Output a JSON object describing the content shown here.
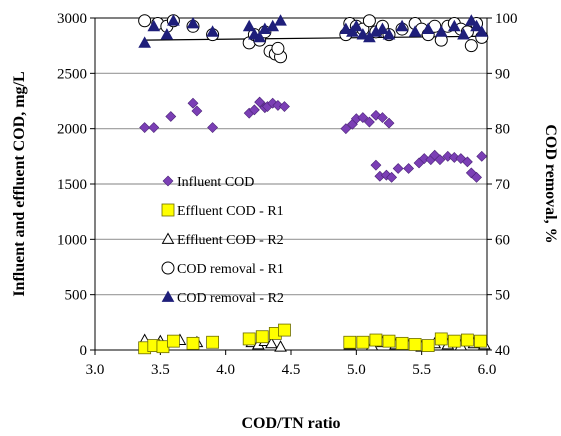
{
  "chart_data": {
    "type": "scatter",
    "xlabel": "COD/TN ratio",
    "ylabel": "Influent and effluent COD, mg/L",
    "y2label": "COD removal, %",
    "xlim": [
      3.0,
      6.0
    ],
    "ylim": [
      0,
      3000
    ],
    "y2lim": [
      40,
      100
    ],
    "xticks": [
      "3.0",
      "3.5",
      "4.0",
      "4.5",
      "5.0",
      "5.5",
      "6.0"
    ],
    "yticks": [
      "0",
      "500",
      "1000",
      "1500",
      "2000",
      "2500",
      "3000"
    ],
    "y2ticks": [
      "40",
      "50",
      "60",
      "70",
      "80",
      "90",
      "100"
    ],
    "grid": "horizontal",
    "legend_position": "center-left",
    "series": [
      {
        "name": "Influent COD",
        "axis": "left",
        "marker": "diamond",
        "color": "#7b3fb5",
        "points": [
          [
            3.38,
            2010
          ],
          [
            3.45,
            2010
          ],
          [
            3.58,
            2110
          ],
          [
            3.75,
            2230
          ],
          [
            3.78,
            2160
          ],
          [
            3.9,
            2010
          ],
          [
            4.18,
            2140
          ],
          [
            4.22,
            2170
          ],
          [
            4.26,
            2240
          ],
          [
            4.3,
            2190
          ],
          [
            4.32,
            2200
          ],
          [
            4.36,
            2230
          ],
          [
            4.4,
            2210
          ],
          [
            4.45,
            2200
          ],
          [
            4.92,
            2000
          ],
          [
            4.97,
            2040
          ],
          [
            5.0,
            2090
          ],
          [
            5.05,
            2100
          ],
          [
            5.1,
            2060
          ],
          [
            5.15,
            2120
          ],
          [
            5.2,
            2100
          ],
          [
            5.25,
            2050
          ],
          [
            5.15,
            1670
          ],
          [
            5.18,
            1570
          ],
          [
            5.23,
            1580
          ],
          [
            5.27,
            1560
          ],
          [
            5.32,
            1640
          ],
          [
            5.4,
            1640
          ],
          [
            5.48,
            1690
          ],
          [
            5.52,
            1730
          ],
          [
            5.57,
            1720
          ],
          [
            5.6,
            1760
          ],
          [
            5.64,
            1720
          ],
          [
            5.7,
            1750
          ],
          [
            5.75,
            1740
          ],
          [
            5.8,
            1730
          ],
          [
            5.85,
            1700
          ],
          [
            5.88,
            1600
          ],
          [
            5.92,
            1560
          ],
          [
            5.96,
            1750
          ]
        ]
      },
      {
        "name": "Effluent COD - R1",
        "axis": "left",
        "marker": "square",
        "color": "#ffff00",
        "points": [
          [
            3.38,
            20
          ],
          [
            3.45,
            40
          ],
          [
            3.52,
            30
          ],
          [
            3.6,
            80
          ],
          [
            3.75,
            60
          ],
          [
            3.9,
            70
          ],
          [
            4.18,
            100
          ],
          [
            4.28,
            120
          ],
          [
            4.38,
            150
          ],
          [
            4.45,
            180
          ],
          [
            4.95,
            70
          ],
          [
            5.05,
            70
          ],
          [
            5.15,
            90
          ],
          [
            5.25,
            80
          ],
          [
            5.35,
            60
          ],
          [
            5.45,
            50
          ],
          [
            5.55,
            40
          ],
          [
            5.65,
            100
          ],
          [
            5.75,
            80
          ],
          [
            5.85,
            90
          ],
          [
            5.95,
            80
          ]
        ]
      },
      {
        "name": "Effluent COD - R2",
        "axis": "left",
        "marker": "triangle-open",
        "color": "#000000",
        "points": [
          [
            3.38,
            90
          ],
          [
            3.5,
            80
          ],
          [
            3.65,
            90
          ],
          [
            3.78,
            70
          ],
          [
            3.9,
            60
          ],
          [
            4.2,
            70
          ],
          [
            4.25,
            50
          ],
          [
            4.3,
            80
          ],
          [
            4.35,
            60
          ],
          [
            4.42,
            30
          ],
          [
            4.95,
            50
          ],
          [
            5.05,
            60
          ],
          [
            5.12,
            40
          ],
          [
            5.2,
            70
          ],
          [
            5.3,
            50
          ],
          [
            5.4,
            40
          ],
          [
            5.5,
            30
          ],
          [
            5.6,
            60
          ],
          [
            5.7,
            50
          ],
          [
            5.8,
            40
          ],
          [
            5.9,
            60
          ],
          [
            5.98,
            50
          ]
        ]
      },
      {
        "name": "COD removal  - R1",
        "axis": "right",
        "marker": "circle-open",
        "color": "#000000",
        "points": [
          [
            3.38,
            99.5
          ],
          [
            3.48,
            99.0
          ],
          [
            3.55,
            98.5
          ],
          [
            3.6,
            99.5
          ],
          [
            3.75,
            98.5
          ],
          [
            3.9,
            97.0
          ],
          [
            4.18,
            95.5
          ],
          [
            4.22,
            97.0
          ],
          [
            4.26,
            96.0
          ],
          [
            4.3,
            97.5
          ],
          [
            4.34,
            94.0
          ],
          [
            4.38,
            93.5
          ],
          [
            4.42,
            93.0
          ],
          [
            4.4,
            94.5
          ],
          [
            4.92,
            97.0
          ],
          [
            4.95,
            99.0
          ],
          [
            5.0,
            98.5
          ],
          [
            5.05,
            98.0
          ],
          [
            5.1,
            99.5
          ],
          [
            5.15,
            97.5
          ],
          [
            5.2,
            98.5
          ],
          [
            5.25,
            97.0
          ],
          [
            5.35,
            98.0
          ],
          [
            5.45,
            99.0
          ],
          [
            5.5,
            98.0
          ],
          [
            5.55,
            97.0
          ],
          [
            5.6,
            98.5
          ],
          [
            5.65,
            96.0
          ],
          [
            5.7,
            98.5
          ],
          [
            5.75,
            99.0
          ],
          [
            5.8,
            98.0
          ],
          [
            5.85,
            97.5
          ],
          [
            5.88,
            95.0
          ],
          [
            5.92,
            99.0
          ],
          [
            5.96,
            96.5
          ]
        ]
      },
      {
        "name": "COD removal  - R2",
        "axis": "right",
        "marker": "triangle",
        "color": "#1f1f7a",
        "points": [
          [
            3.38,
            95.5
          ],
          [
            3.45,
            98.5
          ],
          [
            3.55,
            97.0
          ],
          [
            3.6,
            99.5
          ],
          [
            3.75,
            99.0
          ],
          [
            3.9,
            97.5
          ],
          [
            4.18,
            98.5
          ],
          [
            4.22,
            97.0
          ],
          [
            4.26,
            96.5
          ],
          [
            4.3,
            98.0
          ],
          [
            4.36,
            98.5
          ],
          [
            4.42,
            99.5
          ],
          [
            4.92,
            98.0
          ],
          [
            4.97,
            97.5
          ],
          [
            5.0,
            98.5
          ],
          [
            5.05,
            97.0
          ],
          [
            5.1,
            96.5
          ],
          [
            5.15,
            97.5
          ],
          [
            5.2,
            98.0
          ],
          [
            5.25,
            97.0
          ],
          [
            5.35,
            98.5
          ],
          [
            5.45,
            97.5
          ],
          [
            5.55,
            98.0
          ],
          [
            5.65,
            97.5
          ],
          [
            5.75,
            98.5
          ],
          [
            5.82,
            97.0
          ],
          [
            5.88,
            99.5
          ],
          [
            5.92,
            98.5
          ],
          [
            5.96,
            97.5
          ]
        ]
      }
    ],
    "trendline": {
      "axis": "right",
      "x": [
        3.38,
        5.97
      ],
      "y": [
        96.0,
        96.7
      ],
      "color": "#000000"
    }
  }
}
